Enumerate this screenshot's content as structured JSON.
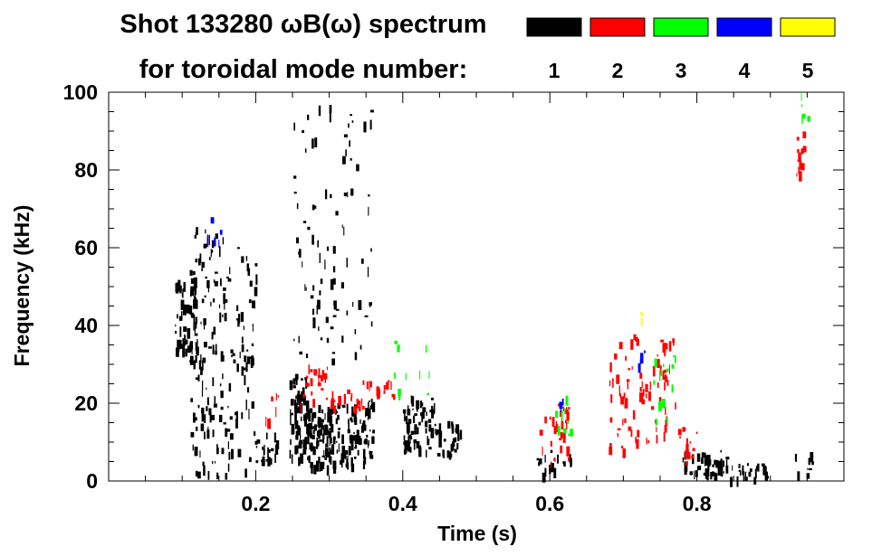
{
  "chart_data": {
    "type": "heatmap",
    "title": "Shot 133280 ωB(ω) spectrum",
    "legend_title": "for toroidal mode number:",
    "xlabel": "Time (s)",
    "ylabel": "Frequency (kHz)",
    "xlim": [
      0.0,
      1.0
    ],
    "ylim": [
      0,
      100
    ],
    "x_ticks": [
      {
        "value": 0.2,
        "label": "0.2"
      },
      {
        "value": 0.4,
        "label": "0.4"
      },
      {
        "value": 0.6,
        "label": "0.6"
      },
      {
        "value": 0.8,
        "label": "0.8"
      }
    ],
    "y_ticks": [
      {
        "value": 0,
        "label": "0"
      },
      {
        "value": 20,
        "label": "20"
      },
      {
        "value": 40,
        "label": "40"
      },
      {
        "value": 60,
        "label": "60"
      },
      {
        "value": 80,
        "label": "80"
      },
      {
        "value": 100,
        "label": "100"
      }
    ],
    "legend": [
      {
        "label": "1",
        "color": "#000000"
      },
      {
        "label": "2",
        "color": "#ff0000"
      },
      {
        "label": "3",
        "color": "#00ff00"
      },
      {
        "label": "4",
        "color": "#0000ff"
      },
      {
        "label": "5",
        "color": "#ffff00"
      }
    ],
    "grid": false,
    "legend_placement": "top-right",
    "series": [
      {
        "mode": 1,
        "regions": [
          {
            "t": [
              0.09,
              0.12
            ],
            "f": [
              34,
              52
            ],
            "density": 0.85
          },
          {
            "t": [
              0.11,
              0.16
            ],
            "f": [
              2,
              66
            ],
            "density": 0.25
          },
          {
            "t": [
              0.16,
              0.2
            ],
            "f": [
              2,
              62
            ],
            "density": 0.18
          },
          {
            "t": [
              0.2,
              0.23
            ],
            "f": [
              5,
              13
            ],
            "density": 0.55
          },
          {
            "t": [
              0.245,
              0.27
            ],
            "f": [
              6,
              28
            ],
            "density": 0.85
          },
          {
            "t": [
              0.27,
              0.34
            ],
            "f": [
              4,
              20
            ],
            "density": 0.9
          },
          {
            "t": [
              0.34,
              0.36
            ],
            "f": [
              4,
              22
            ],
            "density": 0.6
          },
          {
            "t": [
              0.25,
              0.36
            ],
            "f": [
              30,
              100
            ],
            "density": 0.08
          },
          {
            "t": [
              0.4,
              0.445
            ],
            "f": [
              8,
              22
            ],
            "density": 0.7
          },
          {
            "t": [
              0.445,
              0.48
            ],
            "f": [
              7,
              16
            ],
            "density": 0.5
          },
          {
            "t": [
              0.58,
              0.63
            ],
            "f": [
              2,
              8
            ],
            "density": 0.35
          },
          {
            "t": [
              0.78,
              0.84
            ],
            "f": [
              2,
              8
            ],
            "density": 0.8
          },
          {
            "t": [
              0.84,
              0.9
            ],
            "f": [
              1,
              5
            ],
            "density": 0.6
          },
          {
            "t": [
              0.93,
              0.96
            ],
            "f": [
              2,
              8
            ],
            "density": 0.25
          }
        ]
      },
      {
        "mode": 2,
        "regions": [
          {
            "t": [
              0.21,
              0.23
            ],
            "f": [
              14,
              24
            ],
            "density": 0.15
          },
          {
            "t": [
              0.26,
              0.3
            ],
            "f": [
              20,
              30
            ],
            "density": 0.35
          },
          {
            "t": [
              0.3,
              0.345
            ],
            "f": [
              19,
              24
            ],
            "density": 0.5
          },
          {
            "t": [
              0.345,
              0.39
            ],
            "f": [
              22,
              26
            ],
            "density": 0.55
          },
          {
            "t": [
              0.585,
              0.625
            ],
            "f": [
              5,
              20
            ],
            "density": 0.3
          },
          {
            "t": [
              0.68,
              0.72
            ],
            "f": [
              8,
              38
            ],
            "density": 0.2
          },
          {
            "t": [
              0.72,
              0.77
            ],
            "f": [
              10,
              37
            ],
            "density": 0.22
          },
          {
            "t": [
              0.77,
              0.8
            ],
            "f": [
              5,
              14
            ],
            "density": 0.3
          },
          {
            "t": [
              0.935,
              0.945
            ],
            "f": [
              78,
              90
            ],
            "density": 0.7
          }
        ]
      },
      {
        "mode": 3,
        "regions": [
          {
            "t": [
              0.38,
              0.44
            ],
            "f": [
              22,
              38
            ],
            "density": 0.06
          },
          {
            "t": [
              0.6,
              0.63
            ],
            "f": [
              12,
              22
            ],
            "density": 0.15
          },
          {
            "t": [
              0.74,
              0.77
            ],
            "f": [
              15,
              33
            ],
            "density": 0.15
          },
          {
            "t": [
              0.94,
              0.95
            ],
            "f": [
              92,
              100
            ],
            "density": 0.3
          }
        ]
      },
      {
        "mode": 4,
        "regions": [
          {
            "t": [
              0.13,
              0.16
            ],
            "f": [
              62,
              72
            ],
            "density": 0.1
          },
          {
            "t": [
              0.61,
              0.62
            ],
            "f": [
              19,
              22
            ],
            "density": 0.3
          },
          {
            "t": [
              0.72,
              0.73
            ],
            "f": [
              30,
              34
            ],
            "density": 0.3
          }
        ]
      },
      {
        "mode": 5,
        "regions": [
          {
            "t": [
              0.72,
              0.725
            ],
            "f": [
              42,
              44
            ],
            "density": 0.5
          }
        ]
      }
    ]
  }
}
